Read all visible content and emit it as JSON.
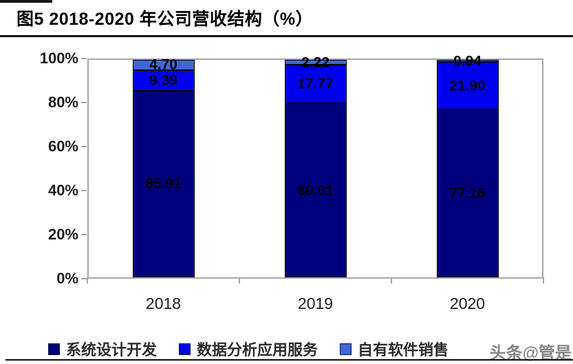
{
  "figure": {
    "title": "图5  2018-2020 年公司营收结构（%）"
  },
  "watermark": "头条@管是",
  "chart_data": {
    "type": "bar",
    "subtype": "stacked-100-percent",
    "title": "2018-2020 年公司营收结构（%）",
    "categories": [
      "2018",
      "2019",
      "2020"
    ],
    "series": [
      {
        "name": "系统设计开发",
        "color": "#00007d",
        "values": [
          85.91,
          80.01,
          77.16
        ]
      },
      {
        "name": "数据分析应用服务",
        "color": "#0000ee",
        "values": [
          9.39,
          17.77,
          21.9
        ]
      },
      {
        "name": "自有软件销售",
        "color": "#3f66d8",
        "values": [
          4.7,
          2.22,
          0.94
        ]
      }
    ],
    "ylim": [
      0,
      100
    ],
    "yticks": [
      "0%",
      "20%",
      "40%",
      "60%",
      "80%",
      "100%"
    ],
    "grid": false,
    "legend_position": "bottom",
    "data_labels": true,
    "label_decimals": 2
  }
}
